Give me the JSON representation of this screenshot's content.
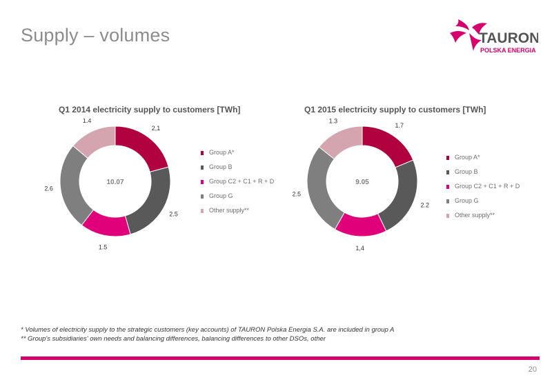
{
  "slide": {
    "title": "Supply – volumes",
    "page_number": "20",
    "brand_color": "#d5006d"
  },
  "logo": {
    "brand_name": "TAURON",
    "tagline": "POLSKA ENERGIA",
    "brand_color": "#d5006d",
    "text_color": "#555555"
  },
  "footnotes": [
    "* Volumes of electricity supply to the strategic customers (key accounts) of TAURON Polska Energia S.A. are included in group A",
    "** Group's subsidiaries' own needs and balancing differences, balancing differences to other DSOs, other"
  ],
  "chart_data": [
    {
      "type": "pie",
      "title": "Q1 2014 electricity supply to customers [TWh]",
      "center_label": "10.07",
      "categories": [
        "Group A*",
        "Group B",
        "Group C2 + C1 + R + D",
        "Group G",
        "Other supply**"
      ],
      "values": [
        2.1,
        2.5,
        1.5,
        2.6,
        1.4
      ],
      "data_labels": [
        "2,1",
        "2.5",
        "1.5",
        "2.6",
        "1.4"
      ],
      "colors": [
        "#b0003e",
        "#595959",
        "#e0007a",
        "#7f7f7f",
        "#d4a5ae"
      ],
      "legend_position": "right"
    },
    {
      "type": "pie",
      "title": "Q1 2015 electricity supply to customers [TWh]",
      "center_label": "9.05",
      "categories": [
        "Group A*",
        "Group B",
        "Group C2 + C1 + R + D",
        "Group G",
        "Other supply**"
      ],
      "values": [
        1.7,
        2.2,
        1.4,
        2.5,
        1.3
      ],
      "data_labels": [
        "1.7",
        "2.2",
        "1,4",
        "2.5",
        "1.3"
      ],
      "colors": [
        "#b0003e",
        "#595959",
        "#e0007a",
        "#7f7f7f",
        "#d4a5ae"
      ],
      "legend_position": "right"
    }
  ]
}
